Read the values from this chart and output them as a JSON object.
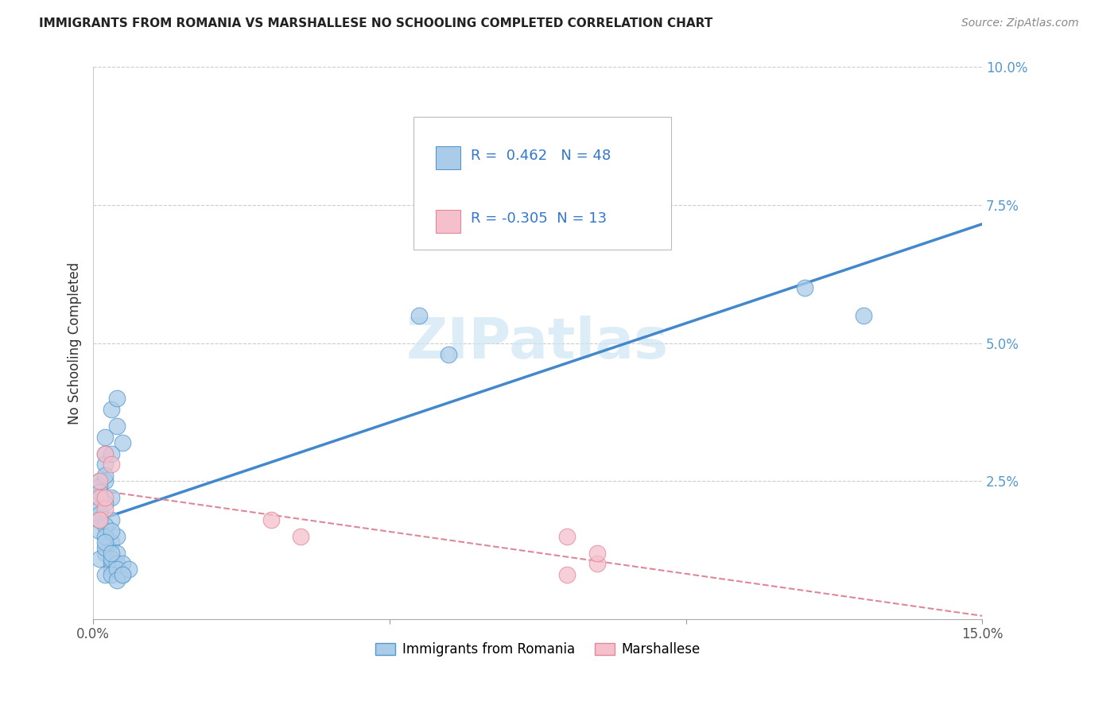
{
  "title": "IMMIGRANTS FROM ROMANIA VS MARSHALLESE NO SCHOOLING COMPLETED CORRELATION CHART",
  "source": "Source: ZipAtlas.com",
  "ylabel": "No Schooling Completed",
  "legend_label1": "Immigrants from Romania",
  "legend_label2": "Marshallese",
  "R1": 0.462,
  "N1": 48,
  "R2": -0.305,
  "N2": 13,
  "xmin": 0.0,
  "xmax": 0.15,
  "ymin": 0.0,
  "ymax": 0.1,
  "color_blue_fill": "#aacce8",
  "color_pink_fill": "#f5c0cc",
  "color_blue_edge": "#5599cc",
  "color_pink_edge": "#e0889a",
  "color_blue_line": "#4488cc",
  "color_pink_line": "#dd8899",
  "color_axis_blue": "#5599cc",
  "romania_x": [
    0.001,
    0.002,
    0.003,
    0.004,
    0.005,
    0.001,
    0.002,
    0.001,
    0.003,
    0.002,
    0.001,
    0.002,
    0.003,
    0.001,
    0.002,
    0.004,
    0.003,
    0.002,
    0.001,
    0.003,
    0.002,
    0.001,
    0.002,
    0.003,
    0.004,
    0.002,
    0.001,
    0.003,
    0.002,
    0.004,
    0.003,
    0.002,
    0.001,
    0.003,
    0.002,
    0.004,
    0.003,
    0.005,
    0.004,
    0.003,
    0.005,
    0.004,
    0.006,
    0.005,
    0.055,
    0.06,
    0.12,
    0.13
  ],
  "romania_y": [
    0.025,
    0.03,
    0.038,
    0.04,
    0.032,
    0.022,
    0.028,
    0.02,
    0.018,
    0.033,
    0.019,
    0.025,
    0.022,
    0.024,
    0.021,
    0.035,
    0.03,
    0.026,
    0.016,
    0.014,
    0.012,
    0.011,
    0.013,
    0.01,
    0.015,
    0.017,
    0.023,
    0.009,
    0.008,
    0.012,
    0.011,
    0.015,
    0.018,
    0.016,
    0.014,
    0.01,
    0.008,
    0.01,
    0.009,
    0.012,
    0.008,
    0.007,
    0.009,
    0.008,
    0.055,
    0.048,
    0.06,
    0.055
  ],
  "marshallese_x": [
    0.001,
    0.002,
    0.001,
    0.003,
    0.002,
    0.001,
    0.002,
    0.03,
    0.035,
    0.08,
    0.085,
    0.08,
    0.085
  ],
  "marshallese_y": [
    0.025,
    0.03,
    0.022,
    0.028,
    0.02,
    0.018,
    0.022,
    0.018,
    0.015,
    0.015,
    0.01,
    0.008,
    0.012
  ]
}
